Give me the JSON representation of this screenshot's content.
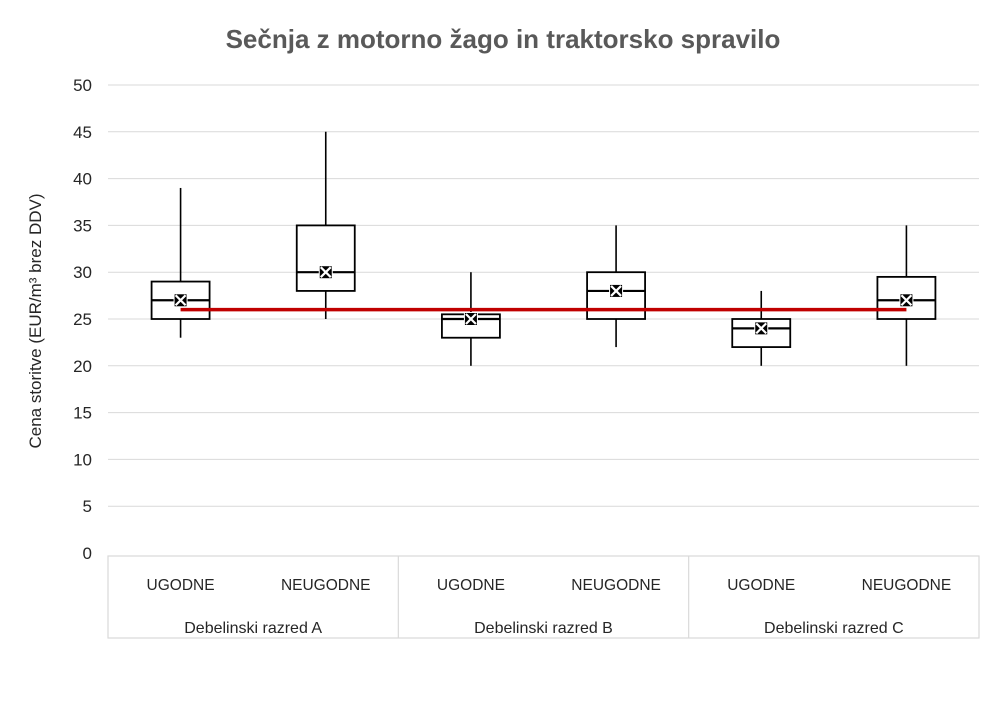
{
  "title": "Sečnja z motorno žago in traktorsko spravilo",
  "y_axis_title": "Cena storitve (EUR/m³ brez DDV)",
  "colors": {
    "title_text": "#595959",
    "axis_text": "#262626",
    "gridline": "#D9D9D9",
    "axis_frame": "#D9D9D9",
    "box_stroke": "#000000",
    "box_fill": "#FFFFFF",
    "mean_marker": "#000000",
    "reference_line": "#C00000"
  },
  "chart_data": {
    "type": "boxplot",
    "title": "Sečnja z motorno žago in traktorsko spravilo",
    "xlabel": "",
    "ylabel": "Cena storitve (EUR/m³ brez DDV)",
    "ylim": [
      0,
      50
    ],
    "yticks": [
      0,
      5,
      10,
      15,
      20,
      25,
      30,
      35,
      40,
      45,
      50
    ],
    "grid": true,
    "legend": "none",
    "categories": [
      "UGODNE",
      "NEUGODNE"
    ],
    "groups": [
      {
        "label": "Debelinski razred A",
        "boxes": [
          {
            "category": "UGODNE",
            "min": 23,
            "q1": 25,
            "median": 27,
            "q3": 29,
            "max": 39,
            "mean": 27
          },
          {
            "category": "NEUGODNE",
            "min": 25,
            "q1": 28,
            "median": 30,
            "q3": 35,
            "max": 45,
            "mean": 30
          }
        ]
      },
      {
        "label": "Debelinski razred B",
        "boxes": [
          {
            "category": "UGODNE",
            "min": 20,
            "q1": 23,
            "median": 25,
            "q3": 25.5,
            "max": 30,
            "mean": 25
          },
          {
            "category": "NEUGODNE",
            "min": 22,
            "q1": 25,
            "median": 28,
            "q3": 30,
            "max": 35,
            "mean": 28
          }
        ]
      },
      {
        "label": "Debelinski razred C",
        "boxes": [
          {
            "category": "UGODNE",
            "min": 20,
            "q1": 22,
            "median": 24,
            "q3": 25,
            "max": 28,
            "mean": 24
          },
          {
            "category": "NEUGODNE",
            "min": 20,
            "q1": 25,
            "median": 27,
            "q3": 29.5,
            "max": 35,
            "mean": 27
          }
        ]
      }
    ],
    "reference_line": {
      "value": 26,
      "color": "#C00000",
      "span": "from first box center to last box center"
    }
  }
}
